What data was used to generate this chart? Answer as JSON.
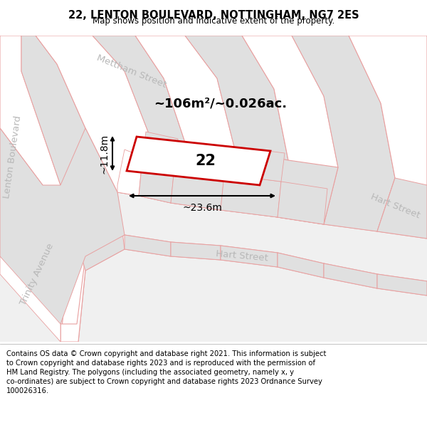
{
  "title": "22, LENTON BOULEVARD, NOTTINGHAM, NG7 2ES",
  "subtitle": "Map shows position and indicative extent of the property.",
  "footer": "Contains OS data © Crown copyright and database right 2021. This information is subject\nto Crown copyright and database rights 2023 and is reproduced with the permission of\nHM Land Registry. The polygons (including the associated geometry, namely x, y\nco-ordinates) are subject to Crown copyright and database rights 2023 Ordnance Survey\n100026316.",
  "map_bg": "#f0f0f0",
  "road_fill": "#ffffff",
  "block_fill": "#e0e0e0",
  "road_stroke": "#e8a0a0",
  "street_label_color": "#b8b8b8",
  "area_label": "~106m²/~0.026ac.",
  "number_label": "22",
  "width_label": "~23.6m",
  "height_label": "~11.8m",
  "title_fontsize": 10.5,
  "subtitle_fontsize": 8.5,
  "footer_fontsize": 7.2,
  "street_fontsize": 9.5
}
